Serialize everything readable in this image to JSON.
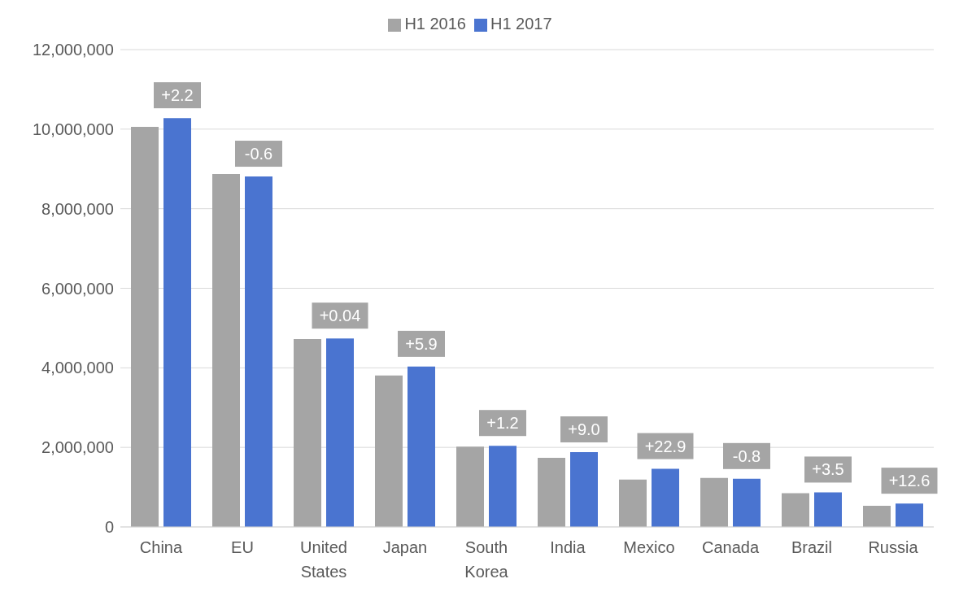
{
  "chart_data": {
    "type": "bar",
    "categories": [
      "China",
      "EU",
      "United States",
      "Japan",
      "South Korea",
      "India",
      "Mexico",
      "Canada",
      "Brazil",
      "Russia"
    ],
    "series": [
      {
        "name": "H1 2016",
        "color": "#a5a5a5",
        "values": [
          10060000,
          8870000,
          4720000,
          3810000,
          2020000,
          1740000,
          1190000,
          1230000,
          850000,
          530000
        ]
      },
      {
        "name": "H1 2017",
        "color": "#4a74d0",
        "values": [
          10280000,
          8810000,
          4740000,
          4030000,
          2040000,
          1880000,
          1460000,
          1210000,
          870000,
          590000
        ]
      }
    ],
    "ylim": [
      0,
      12000000
    ],
    "yticks": [
      0,
      {
        "value": 2000000,
        "label": "2,000,000"
      },
      {
        "value": 4000000,
        "label": "4,000,000"
      },
      {
        "value": 6000000,
        "label": "6,000,000"
      },
      {
        "value": 8000000,
        "label": "8,000,000"
      },
      {
        "value": 10000000,
        "label": "10,000,000"
      },
      {
        "value": 12000000,
        "label": "12,000,000"
      }
    ],
    "grid": "y",
    "legend": "top",
    "annotations": [
      {
        "text": "+2.2",
        "x": "China",
        "y": 10280000
      },
      {
        "text": "-0.6",
        "x": "EU",
        "y": 8810000
      },
      {
        "text": "+0.04",
        "x": "United States",
        "y": 4740000
      },
      {
        "text": "+5.9",
        "x": "Japan",
        "y": 4030000
      },
      {
        "text": "+1.2",
        "x": "South Korea",
        "y": 2040000
      },
      {
        "text": "+9.0",
        "x": "India",
        "y": 1880000
      },
      {
        "text": "+22.9",
        "x": "Mexico",
        "y": 1460000
      },
      {
        "text": "-0.8",
        "x": "Canada",
        "y": 1210000
      },
      {
        "text": "+3.5",
        "x": "Brazil",
        "y": 870000
      },
      {
        "text": "+12.6",
        "x": "Russia",
        "y": 590000
      }
    ]
  }
}
